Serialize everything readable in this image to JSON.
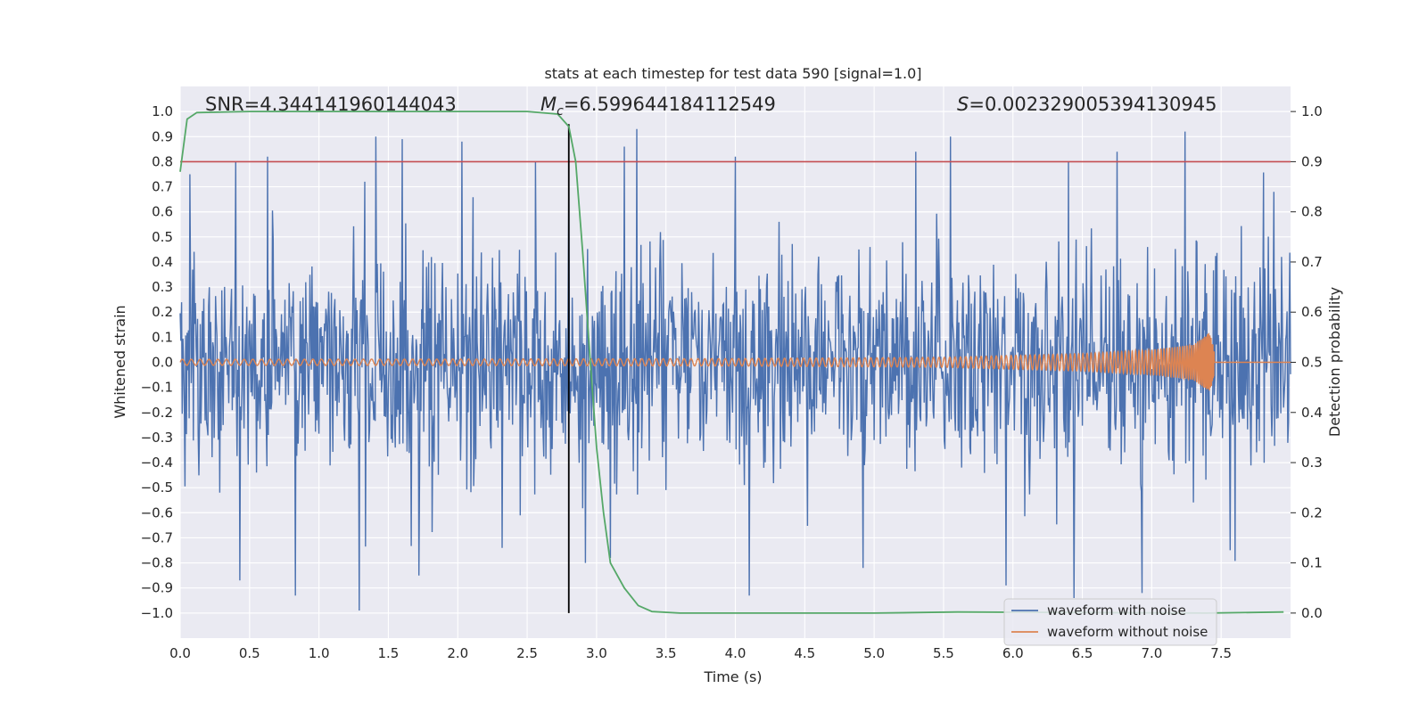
{
  "chart_data": {
    "type": "line",
    "title": "stats at each timestep for test data 590 [signal=1.0]",
    "xlabel": "Time (s)",
    "ylabel": "Whitened strain",
    "y2label": "Detection probability",
    "xlim": [
      0.0,
      8.0
    ],
    "ylim": [
      -1.1,
      1.1
    ],
    "y2lim": [
      -0.05,
      1.05
    ],
    "x_ticks": [
      0.0,
      0.5,
      1.0,
      1.5,
      2.0,
      2.5,
      3.0,
      3.5,
      4.0,
      4.5,
      5.0,
      5.5,
      6.0,
      6.5,
      7.0,
      7.5
    ],
    "x_tick_labels": [
      "0.0",
      "0.5",
      "1.0",
      "1.5",
      "2.0",
      "2.5",
      "3.0",
      "3.5",
      "4.0",
      "4.5",
      "5.0",
      "5.5",
      "6.0",
      "6.5",
      "7.0",
      "7.5"
    ],
    "y_ticks": [
      1.0,
      0.9,
      0.8,
      0.7,
      0.6,
      0.5,
      0.4,
      0.3,
      0.2,
      0.1,
      0.0,
      -0.1,
      -0.2,
      -0.3,
      -0.4,
      -0.5,
      -0.6,
      -0.7,
      -0.8,
      -0.9,
      -1.0
    ],
    "y_tick_labels": [
      "1.0",
      "0.9",
      "0.8",
      "0.7",
      "0.6",
      "0.5",
      "0.4",
      "0.3",
      "0.2",
      "0.1",
      "0.0",
      "−0.1",
      "−0.2",
      "−0.3",
      "−0.4",
      "−0.5",
      "−0.6",
      "−0.7",
      "−0.8",
      "−0.9",
      "−1.0"
    ],
    "y2_ticks": [
      1.0,
      0.9,
      0.8,
      0.7,
      0.6,
      0.5,
      0.4,
      0.3,
      0.2,
      0.1,
      0.0
    ],
    "y2_tick_labels": [
      "1.0",
      "0.9",
      "0.8",
      "0.7",
      "0.6",
      "0.5",
      "0.4",
      "0.3",
      "0.2",
      "0.1",
      "0.0"
    ],
    "annotations": {
      "snr": "SNR=4.344141960144043",
      "mc_symbol": "M",
      "mc_sub": "c",
      "mc_value": "=6.599644184112549",
      "s_symbol": "S",
      "s_value": "=0.002329005394130945"
    },
    "series": [
      {
        "name": "waveform with noise",
        "color": "#4c72b0",
        "axis": "left",
        "description": "noisy whitened strain, mostly within ±0.5 with spikes up to about ±0.95",
        "envelope": [
          0.55,
          -0.55
        ],
        "peaks": [
          {
            "x": 0.07,
            "y": 0.75
          },
          {
            "x": 0.4,
            "y": 0.8
          },
          {
            "x": 0.63,
            "y": 0.82
          },
          {
            "x": 1.33,
            "y": 0.72
          },
          {
            "x": 1.41,
            "y": 0.9
          },
          {
            "x": 1.6,
            "y": 0.89
          },
          {
            "x": 2.03,
            "y": 0.88
          },
          {
            "x": 2.56,
            "y": 0.8
          },
          {
            "x": 2.8,
            "y": 0.72
          },
          {
            "x": 3.2,
            "y": 0.86
          },
          {
            "x": 3.29,
            "y": 0.93
          },
          {
            "x": 4.0,
            "y": 0.82
          },
          {
            "x": 5.3,
            "y": 0.84
          },
          {
            "x": 5.55,
            "y": 0.9
          },
          {
            "x": 6.4,
            "y": 0.8
          },
          {
            "x": 6.75,
            "y": 0.84
          },
          {
            "x": 7.24,
            "y": 0.92
          },
          {
            "x": 7.88,
            "y": 0.68
          }
        ],
        "troughs": [
          {
            "x": 0.43,
            "y": -0.87
          },
          {
            "x": 0.83,
            "y": -0.93
          },
          {
            "x": 1.29,
            "y": -0.99
          },
          {
            "x": 1.72,
            "y": -0.85
          },
          {
            "x": 2.32,
            "y": -0.74
          },
          {
            "x": 2.92,
            "y": -0.8
          },
          {
            "x": 3.1,
            "y": -0.78
          },
          {
            "x": 4.1,
            "y": -0.93
          },
          {
            "x": 4.92,
            "y": -0.82
          },
          {
            "x": 5.95,
            "y": -0.89
          },
          {
            "x": 6.44,
            "y": -0.94
          },
          {
            "x": 6.93,
            "y": -0.92
          }
        ]
      },
      {
        "name": "waveform without noise",
        "color": "#dd8452",
        "axis": "left",
        "description": "chirp signal, amplitude growing from ~0.01 to ~0.12 at merger near t=7.45 s, then ringdown to 0",
        "amplitude_points": [
          [
            0.0,
            0.012
          ],
          [
            2.0,
            0.013
          ],
          [
            4.0,
            0.015
          ],
          [
            5.5,
            0.02
          ],
          [
            6.5,
            0.035
          ],
          [
            7.0,
            0.05
          ],
          [
            7.3,
            0.07
          ],
          [
            7.42,
            0.12
          ],
          [
            7.47,
            0.0
          ],
          [
            8.0,
            0.0
          ]
        ],
        "merger_time": 7.45
      },
      {
        "name": "detection probability",
        "color": "#55a868",
        "axis": "right",
        "points": [
          [
            0.0,
            0.88
          ],
          [
            0.05,
            0.985
          ],
          [
            0.12,
            0.998
          ],
          [
            0.5,
            1.0
          ],
          [
            1.5,
            1.0
          ],
          [
            2.5,
            1.0
          ],
          [
            2.72,
            0.995
          ],
          [
            2.8,
            0.97
          ],
          [
            2.85,
            0.9
          ],
          [
            2.9,
            0.72
          ],
          [
            2.95,
            0.52
          ],
          [
            3.0,
            0.33
          ],
          [
            3.05,
            0.2
          ],
          [
            3.1,
            0.1
          ],
          [
            3.2,
            0.05
          ],
          [
            3.3,
            0.015
          ],
          [
            3.4,
            0.003
          ],
          [
            3.6,
            0.0
          ],
          [
            5.0,
            0.0
          ],
          [
            5.6,
            0.002
          ],
          [
            6.5,
            0.001
          ],
          [
            7.4,
            0.0
          ],
          [
            7.95,
            0.002
          ]
        ]
      }
    ],
    "reference_lines": [
      {
        "type": "horizontal",
        "axis": "right",
        "value": 0.9,
        "color": "#c44e52"
      },
      {
        "type": "vertical",
        "x": 2.8,
        "y_from": -1.0,
        "y_to": 0.95,
        "color": "#000000"
      }
    ],
    "legend": {
      "position": "lower-right",
      "entries": [
        {
          "label": "waveform with noise",
          "color": "#4c72b0"
        },
        {
          "label": "waveform without noise",
          "color": "#dd8452"
        }
      ]
    },
    "grid": true,
    "style": {
      "background": "#eaeaf2",
      "grid_color": "#ffffff"
    }
  }
}
